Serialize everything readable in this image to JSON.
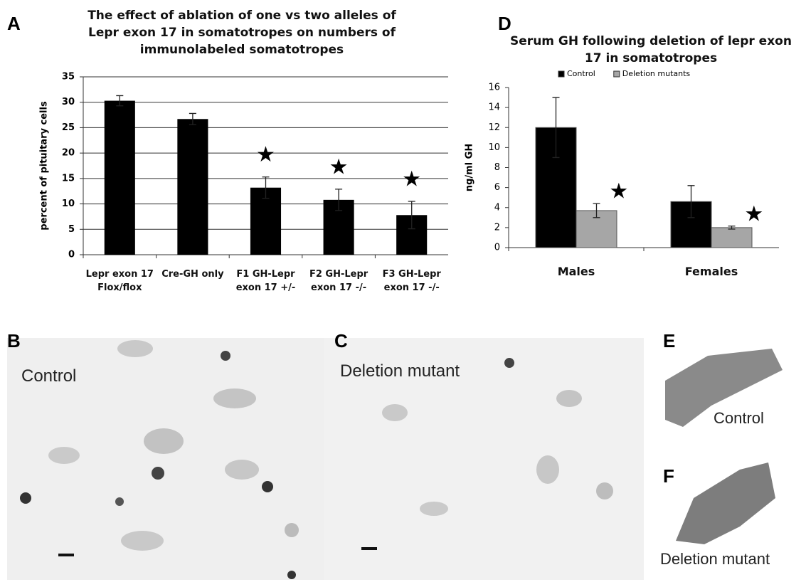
{
  "chart_data": [
    {
      "type": "bar",
      "title": "The effect of ablation of one vs two alleles of Lepr exon 17 in somatotropes on numbers of immunolabeled somatotropes",
      "ylabel": "percent of pituitary cells",
      "categories": [
        "Lepr exon 17 Flox/flox",
        "Cre-GH only",
        "F1 GH-Lepr exon 17 +/-",
        "F2 GH-Lepr exon 17 -/-",
        "F3 GH-Lepr exon 17 -/-"
      ],
      "values": [
        30.3,
        26.7,
        13.2,
        10.8,
        7.8
      ],
      "errors": [
        1.0,
        1.1,
        2.1,
        2.1,
        2.7
      ],
      "significant": [
        false,
        false,
        true,
        true,
        true
      ],
      "color": "#000000",
      "ylim": [
        0,
        35
      ],
      "yticks": [
        0,
        5,
        10,
        15,
        20,
        25,
        30,
        35
      ],
      "grid": true
    },
    {
      "type": "grouped-bar",
      "title": "Serum GH following deletion of lepr exon 17 in somatotropes",
      "ylabel": "ng/ml GH",
      "categories": [
        "Males",
        "Females"
      ],
      "series": [
        {
          "name": "Control",
          "color": "#000000",
          "values": [
            12.0,
            4.6
          ],
          "errors": [
            3.0,
            1.6
          ],
          "significant": [
            false,
            false
          ]
        },
        {
          "name": "Deletion mutants",
          "color": "#a6a6a6",
          "values": [
            3.7,
            2.0
          ],
          "errors": [
            0.7,
            0.15
          ],
          "significant": [
            true,
            true
          ]
        }
      ],
      "ylim": [
        0,
        16
      ],
      "yticks": [
        0,
        2,
        4,
        6,
        8,
        10,
        12,
        14,
        16
      ],
      "grid": false,
      "legend": "top"
    }
  ],
  "panels": {
    "a": "A",
    "b": "B",
    "c": "C",
    "d": "D",
    "e": "E",
    "f": "F",
    "b_caption": "Control",
    "c_caption": "Deletion mutant",
    "e_caption": "Control",
    "f_caption": "Deletion mutant"
  }
}
